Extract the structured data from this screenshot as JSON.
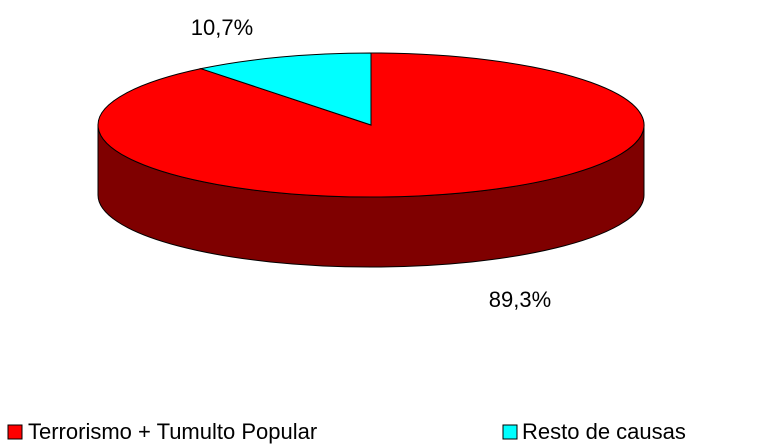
{
  "chart_data": {
    "type": "pie",
    "categories": [
      "Terrorismo + Tumulto Popular",
      "Resto de causas"
    ],
    "values": [
      89.3,
      10.7
    ],
    "value_labels": [
      "89,3%",
      "10,7%"
    ],
    "colors": [
      "#ff0000",
      "#00ffff"
    ]
  }
}
